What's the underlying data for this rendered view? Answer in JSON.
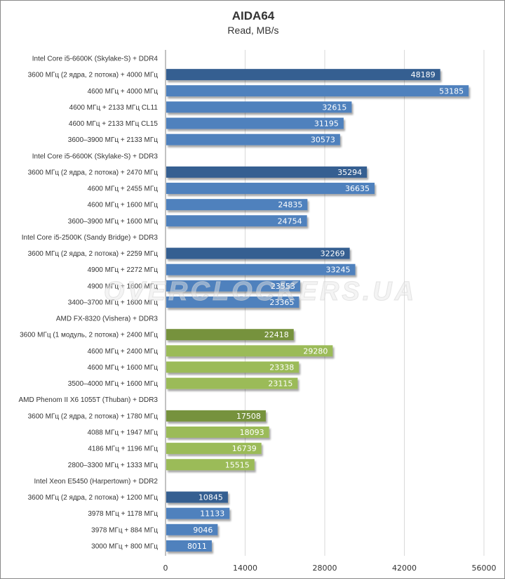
{
  "chart_data": {
    "type": "bar",
    "orientation": "horizontal",
    "title": "AIDA64",
    "subtitle": "Read, MB/s",
    "xlabel": "",
    "ylabel": "",
    "xlim": [
      0,
      56000
    ],
    "ticks": [
      "0",
      "14000",
      "28000",
      "42000",
      "56000"
    ],
    "tick_values": [
      0,
      14000,
      28000,
      42000,
      56000
    ],
    "grid": "vertical",
    "legend": "none",
    "watermark": "OVERCLOCKERS.UA",
    "colors": {
      "intel_dark": "#365f91",
      "intel_light": "#4f81bd",
      "amd_dark": "#76923c",
      "amd_light": "#9bbb59",
      "grid": "#d9d9d9",
      "axis": "#868686"
    },
    "categories": [
      {
        "label": "Intel Core i5-6600K (Skylake-S) + DDR4",
        "value": null,
        "style": "header"
      },
      {
        "label": "3600 МГц (2 ядра, 2 потока) + 4000 МГц",
        "value": 48189,
        "style": "intel_dark"
      },
      {
        "label": "4600 МГц + 4000 МГц",
        "value": 53185,
        "style": "intel_light"
      },
      {
        "label": "4600 МГц + 2133 МГц CL11",
        "value": 32615,
        "style": "intel_light"
      },
      {
        "label": "4600 МГц + 2133 МГц CL15",
        "value": 31195,
        "style": "intel_light"
      },
      {
        "label": "3600–3900 МГц + 2133 МГц",
        "value": 30573,
        "style": "intel_light"
      },
      {
        "label": "Intel Core i5-6600K (Skylake-S) + DDR3",
        "value": null,
        "style": "header"
      },
      {
        "label": "3600 МГц (2 ядра, 2 потока) + 2470 МГц",
        "value": 35294,
        "style": "intel_dark"
      },
      {
        "label": "4600 МГц + 2455 МГц",
        "value": 36635,
        "style": "intel_light"
      },
      {
        "label": "4600 МГц + 1600 МГц",
        "value": 24835,
        "style": "intel_light"
      },
      {
        "label": "3600–3900 МГц + 1600 МГц",
        "value": 24754,
        "style": "intel_light"
      },
      {
        "label": "Intel Core i5-2500K (Sandy Bridge) + DDR3",
        "value": null,
        "style": "header"
      },
      {
        "label": "3600 МГц (2 ядра, 2 потока) + 2259 МГц",
        "value": 32269,
        "style": "intel_dark"
      },
      {
        "label": "4900 МГц + 2272 МГц",
        "value": 33245,
        "style": "intel_light"
      },
      {
        "label": "4900 МГц + 1600 МГц",
        "value": 23553,
        "style": "intel_light"
      },
      {
        "label": "3400–3700 МГц + 1600 МГц",
        "value": 23365,
        "style": "intel_light"
      },
      {
        "label": "AMD FX-8320 (Vishera) + DDR3",
        "value": null,
        "style": "header"
      },
      {
        "label": "3600 МГц (1 модуль, 2 потока) + 2400 МГц",
        "value": 22418,
        "style": "amd_dark"
      },
      {
        "label": "4600 МГц + 2400 МГц",
        "value": 29280,
        "style": "amd_light"
      },
      {
        "label": "4600 МГц + 1600 МГц",
        "value": 23338,
        "style": "amd_light"
      },
      {
        "label": "3500–4000 МГц + 1600 МГц",
        "value": 23115,
        "style": "amd_light"
      },
      {
        "label": "AMD Phenom II X6 1055T (Thuban) + DDR3",
        "value": null,
        "style": "header"
      },
      {
        "label": "3600 МГц (2 ядра, 2 потока) + 1780 МГц",
        "value": 17508,
        "style": "amd_dark"
      },
      {
        "label": "4088 МГц + 1947 МГц",
        "value": 18093,
        "style": "amd_light"
      },
      {
        "label": "4186 МГц + 1196 МГц",
        "value": 16739,
        "style": "amd_light"
      },
      {
        "label": "2800–3300 МГц + 1333 МГц",
        "value": 15515,
        "style": "amd_light"
      },
      {
        "label": "Intel Xeon E5450 (Harpertown) + DDR2",
        "value": null,
        "style": "header"
      },
      {
        "label": "3600 МГц (2 ядра, 2 потока) + 1200 МГц",
        "value": 10845,
        "style": "intel_dark"
      },
      {
        "label": "3978 МГц + 1178 МГц",
        "value": 11133,
        "style": "intel_light"
      },
      {
        "label": "3978 МГц + 884 МГц",
        "value": 9046,
        "style": "intel_light"
      },
      {
        "label": "3000 МГц + 800 МГц",
        "value": 8011,
        "style": "intel_light"
      }
    ]
  }
}
